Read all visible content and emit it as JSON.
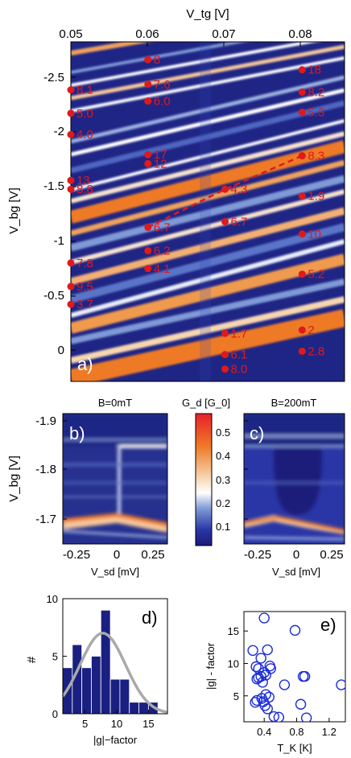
{
  "chart_data": [
    {
      "id": "a",
      "type": "heatmap",
      "panel_label": "a)",
      "xlabel": "V_tg [V]",
      "ylabel": "V_bg [V]",
      "xlim": [
        0.05,
        0.0855
      ],
      "ylim": [
        -2.82,
        0.22
      ],
      "x_ticks": [
        "0.05",
        "0.06",
        "0.07",
        "0.08"
      ],
      "x_tick_values": [
        0.05,
        0.06,
        0.07,
        0.08
      ],
      "y_ticks": [
        "-2.5",
        "-2",
        "-1.5",
        "-1",
        "-0.5",
        "0"
      ],
      "y_tick_values": [
        -2.5,
        -2,
        -1.5,
        -1,
        -0.5,
        0
      ],
      "y_reversed": true,
      "x_axis_position": "top",
      "annotations": [
        {
          "x": 0.06,
          "y": -2.66,
          "text": "8"
        },
        {
          "x": 0.06,
          "y": -2.44,
          "text": "7.6"
        },
        {
          "x": 0.06,
          "y": -2.29,
          "text": "6.0"
        },
        {
          "x": 0.06,
          "y": -1.81,
          "text": "17"
        },
        {
          "x": 0.06,
          "y": -1.73,
          "text": "12"
        },
        {
          "x": 0.06,
          "y": -1.16,
          "text": "6.7"
        },
        {
          "x": 0.06,
          "y": -0.95,
          "text": "6.2"
        },
        {
          "x": 0.06,
          "y": -0.79,
          "text": "4.1"
        },
        {
          "x": 0.05,
          "y": -2.39,
          "text": "8.1"
        },
        {
          "x": 0.05,
          "y": -2.18,
          "text": "5.0"
        },
        {
          "x": 0.05,
          "y": -1.99,
          "text": "4.0"
        },
        {
          "x": 0.05,
          "y": -1.58,
          "text": "13"
        },
        {
          "x": 0.05,
          "y": -1.5,
          "text": "8.8"
        },
        {
          "x": 0.05,
          "y": -0.84,
          "text": "7.8"
        },
        {
          "x": 0.05,
          "y": -0.63,
          "text": "9.5"
        },
        {
          "x": 0.05,
          "y": -0.47,
          "text": "3.7"
        },
        {
          "x": 0.07,
          "y": -1.5,
          "text": "4.3"
        },
        {
          "x": 0.07,
          "y": -1.21,
          "text": "6.7"
        },
        {
          "x": 0.07,
          "y": 0.11,
          "text": "8.0"
        },
        {
          "x": 0.07,
          "y": -0.02,
          "text": "6.1"
        },
        {
          "x": 0.07,
          "y": -0.21,
          "text": "1.7"
        },
        {
          "x": 0.08,
          "y": -2.57,
          "text": "18"
        },
        {
          "x": 0.08,
          "y": -2.37,
          "text": "8.2"
        },
        {
          "x": 0.08,
          "y": -2.19,
          "text": "5.3"
        },
        {
          "x": 0.08,
          "y": -1.8,
          "text": "8.3"
        },
        {
          "x": 0.08,
          "y": -1.44,
          "text": "1.9"
        },
        {
          "x": 0.08,
          "y": -1.1,
          "text": "10"
        },
        {
          "x": 0.08,
          "y": -0.74,
          "text": "5.2"
        },
        {
          "x": 0.08,
          "y": -0.24,
          "text": "2"
        },
        {
          "x": 0.08,
          "y": -0.05,
          "text": "2.8"
        }
      ],
      "dashed_line": [
        [
          0.06,
          -1.16
        ],
        [
          0.07,
          -1.5
        ],
        [
          0.08,
          -1.8
        ]
      ],
      "annotation_color": "#e0191b"
    },
    {
      "id": "b",
      "type": "heatmap",
      "panel_label": "b)",
      "title": "B=0mT",
      "xlabel": "V_sd [mV]",
      "ylabel": "V_bg [V]",
      "xlim": [
        -0.37,
        0.4
      ],
      "ylim": [
        -1.9,
        -1.64
      ],
      "x_ticks": [
        "-0.25",
        "0",
        "0.25"
      ],
      "x_tick_values": [
        -0.25,
        0,
        0.25
      ],
      "y_ticks": [
        "-1.9",
        "-1.8",
        "-1.7"
      ],
      "y_tick_values": [
        -1.9,
        -1.8,
        -1.7
      ],
      "y_reversed": true
    },
    {
      "id": "c",
      "type": "heatmap",
      "panel_label": "c)",
      "title": "B=200mT",
      "xlabel": "V_sd [mV]",
      "xlim": [
        -0.37,
        0.4
      ],
      "ylim": [
        -1.9,
        -1.64
      ],
      "x_ticks": [
        "-0.25",
        "0",
        "0.25"
      ],
      "x_tick_values": [
        -0.25,
        0,
        0.25
      ],
      "y_reversed": true
    },
    {
      "id": "colorbar",
      "type": "heatmap",
      "title": "G_d [G_0]",
      "range": [
        0.02,
        0.58
      ],
      "ticks": [
        "0.5",
        "0.4",
        "0.3",
        "0.2",
        "0.1"
      ],
      "tick_values": [
        0.5,
        0.4,
        0.3,
        0.2,
        0.1
      ],
      "colormap": [
        "#1c1a7a",
        "#3346b8",
        "#7f9ad6",
        "#ffffff",
        "#f5c89a",
        "#ee7a28",
        "#e8202a"
      ]
    },
    {
      "id": "d",
      "type": "bar",
      "panel_label": "d)",
      "xlabel": "|g|−factor",
      "ylabel": "#",
      "bin_edges": [
        1.5,
        3,
        4.5,
        6,
        7.5,
        9,
        10.5,
        12,
        13.5,
        15,
        16.5,
        18
      ],
      "values": [
        4,
        6,
        4,
        5,
        9,
        3,
        3,
        1,
        1,
        1,
        0
      ],
      "xlim": [
        1.5,
        18
      ],
      "ylim": [
        0,
        10
      ],
      "x_ticks": [
        "5",
        "10",
        "15"
      ],
      "x_tick_values": [
        5,
        10,
        15
      ],
      "y_ticks": [
        "0",
        "5",
        "10"
      ],
      "y_tick_values": [
        0,
        5,
        10
      ],
      "fit_curve": {
        "type": "gaussian",
        "mean": 7.8,
        "sigma": 3.6,
        "peak": 7.0
      },
      "bar_color": "#1a2081",
      "fit_color": "#a9a9a9"
    },
    {
      "id": "e",
      "type": "scatter",
      "panel_label": "e)",
      "xlabel": "T_K [K]",
      "ylabel": "|g| - factor",
      "xlim": [
        0.15,
        1.4
      ],
      "ylim": [
        1,
        18
      ],
      "x_ticks": [
        "0.4",
        "0.8",
        "1.2"
      ],
      "x_tick_values": [
        0.4,
        0.8,
        1.2
      ],
      "y_ticks": [
        "5",
        "10",
        "15"
      ],
      "y_tick_values": [
        5,
        10,
        15
      ],
      "x": [
        0.4,
        0.26,
        0.36,
        0.3,
        0.33,
        0.4,
        0.44,
        0.47,
        0.48,
        0.42,
        0.36,
        0.33,
        0.31,
        0.38,
        0.31,
        0.29,
        0.42,
        0.37,
        0.46,
        0.39,
        0.41,
        0.44,
        0.52,
        0.58,
        0.65,
        0.78,
        0.85,
        0.88,
        0.9,
        0.92,
        1.35
      ],
      "y": [
        17,
        12,
        10.8,
        9.5,
        9.2,
        8.6,
        12.1,
        9.6,
        9.2,
        8.2,
        8.0,
        7.8,
        7.6,
        7.1,
        4.3,
        4.0,
        5.2,
        4.6,
        4.8,
        4.1,
        3.5,
        3.0,
        1.8,
        1.7,
        6.7,
        15.1,
        3.7,
        8.0,
        8.0,
        1.6,
        6.7
      ],
      "marker": "open-circle",
      "marker_color": "#1a2cd8"
    }
  ]
}
